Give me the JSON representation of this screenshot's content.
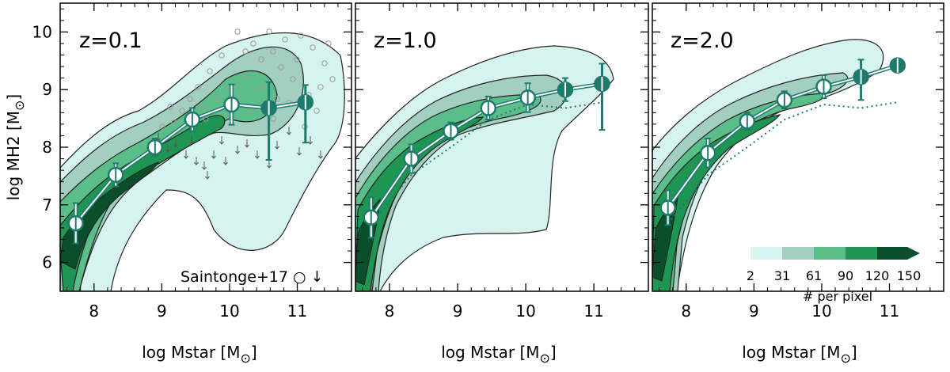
{
  "figure": {
    "ylabel": "log MH2 [M",
    "xlabel": "log Mstar [M",
    "solar_symbol": "⊙"
  },
  "legend": {
    "saintonge_label": "Saintonge+17 ○ ↓"
  },
  "colorbar": {
    "ticks": [
      "2",
      "31",
      "61",
      "90",
      "120",
      "150"
    ],
    "label": "# per pixel",
    "colors": [
      "#d6f3ef",
      "#a3cfc0",
      "#5bbd8a",
      "#1f9554",
      "#0a4f2a"
    ]
  },
  "colors": {
    "median_ring": "#1e7a6c",
    "median_fill": "#1e7a6c",
    "marker_face": "#ffffff",
    "scatter_circle": "#9a9a9a"
  },
  "chart_data": [
    {
      "type": "line",
      "panel": "z=0.1",
      "label": "z=0.1",
      "xlim": [
        7.5,
        11.8
      ],
      "ylim": [
        5.5,
        10.5
      ],
      "xticks": [
        8,
        9,
        10,
        11
      ],
      "yticks": [
        6,
        7,
        8,
        9,
        10
      ],
      "series": [
        {
          "x": [
            7.73,
            8.32,
            8.9,
            9.45,
            10.03,
            10.58,
            11.12
          ],
          "y": [
            6.68,
            7.52,
            8.0,
            8.48,
            8.74,
            8.68,
            8.78
          ],
          "yerr_lo": [
            0.35,
            0.2,
            0.15,
            0.2,
            0.35,
            0.9,
            0.7
          ],
          "yerr_hi": [
            0.35,
            0.2,
            0.15,
            0.2,
            0.35,
            0.45,
            0.3
          ]
        }
      ]
    },
    {
      "type": "line",
      "panel": "z=1.0",
      "label": "z=1.0",
      "xlim": [
        7.5,
        11.8
      ],
      "ylim": [
        5.5,
        10.5
      ],
      "xticks": [
        8,
        9,
        10,
        11
      ],
      "yticks": [
        6,
        7,
        8,
        9,
        10
      ],
      "series": [
        {
          "x": [
            7.73,
            8.32,
            8.9,
            9.45,
            10.03,
            10.58,
            11.12
          ],
          "y": [
            6.78,
            7.8,
            8.28,
            8.68,
            8.86,
            9.0,
            9.1
          ],
          "yerr_lo": [
            0.35,
            0.25,
            0.15,
            0.2,
            0.25,
            0.2,
            0.8
          ],
          "yerr_hi": [
            0.35,
            0.25,
            0.15,
            0.2,
            0.25,
            0.2,
            0.35
          ]
        }
      ]
    },
    {
      "type": "line",
      "panel": "z=2.0",
      "label": "z=2.0",
      "xlim": [
        7.5,
        11.8
      ],
      "ylim": [
        5.5,
        10.5
      ],
      "xticks": [
        8,
        9,
        10,
        11
      ],
      "yticks": [
        6,
        7,
        8,
        9,
        10
      ],
      "series": [
        {
          "x": [
            7.73,
            8.32,
            8.9,
            9.45,
            10.03,
            10.58,
            11.12
          ],
          "y": [
            6.95,
            7.9,
            8.45,
            8.82,
            9.05,
            9.22,
            9.42
          ],
          "yerr_lo": [
            0.3,
            0.25,
            0.15,
            0.15,
            0.2,
            0.4,
            0.1
          ],
          "yerr_hi": [
            0.3,
            0.25,
            0.15,
            0.15,
            0.2,
            0.3,
            0.1
          ]
        }
      ]
    }
  ]
}
